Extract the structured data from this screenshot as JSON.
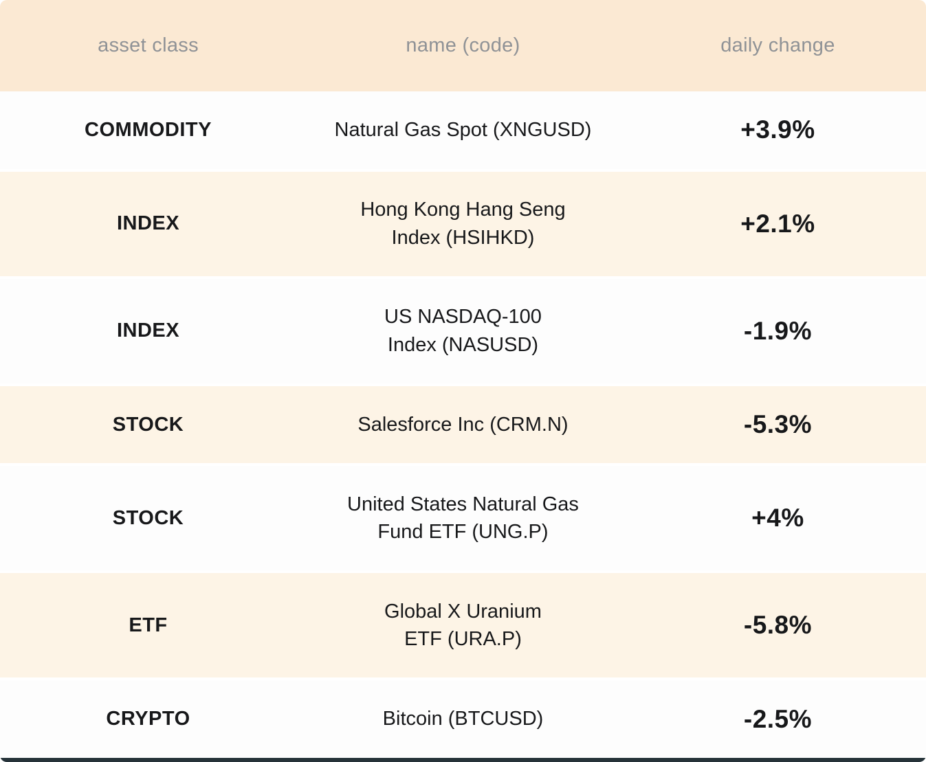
{
  "colors": {
    "header_bg": "#fbe9d3",
    "row_alt_bg": "#fdf4e6",
    "row_bg": "#fdfdfd",
    "header_text": "#8f9296",
    "text": "#17181a",
    "bottom_edge": "#263339"
  },
  "table": {
    "headers": [
      "asset class",
      "name (code)",
      "daily change"
    ],
    "rows": [
      {
        "asset_class": "COMMODITY",
        "name": "Natural Gas Spot (XNGUSD)",
        "change": "+3.9%",
        "alt": false
      },
      {
        "asset_class": "INDEX",
        "name": "Hong Kong Hang Seng\nIndex (HSIHKD)",
        "change": "+2.1%",
        "alt": true
      },
      {
        "asset_class": "INDEX",
        "name": "US NASDAQ-100\nIndex (NASUSD)",
        "change": "-1.9%",
        "alt": false
      },
      {
        "asset_class": "STOCK",
        "name": "Salesforce Inc (CRM.N)",
        "change": "-5.3%",
        "alt": true
      },
      {
        "asset_class": "STOCK",
        "name": "United States Natural Gas\nFund ETF (UNG.P)",
        "change": "+4%",
        "alt": false
      },
      {
        "asset_class": "ETF",
        "name": "Global X Uranium\nETF (URA.P)",
        "change": "-5.8%",
        "alt": true
      },
      {
        "asset_class": "CRYPTO",
        "name": "Bitcoin (BTCUSD)",
        "change": "-2.5%",
        "alt": false
      }
    ]
  },
  "chart_data": {
    "type": "table",
    "title": "",
    "columns": [
      "asset class",
      "name (code)",
      "daily change"
    ],
    "rows": [
      [
        "COMMODITY",
        "Natural Gas Spot (XNGUSD)",
        "+3.9%"
      ],
      [
        "INDEX",
        "Hong Kong Hang Seng Index (HSIHKD)",
        "+2.1%"
      ],
      [
        "INDEX",
        "US NASDAQ-100 Index (NASUSD)",
        "-1.9%"
      ],
      [
        "STOCK",
        "Salesforce Inc (CRM.N)",
        "-5.3%"
      ],
      [
        "STOCK",
        "United States Natural Gas Fund ETF (UNG.P)",
        "+4%"
      ],
      [
        "ETF",
        "Global X Uranium ETF (URA.P)",
        "-5.8%"
      ],
      [
        "CRYPTO",
        "Bitcoin (BTCUSD)",
        "-2.5%"
      ]
    ],
    "daily_change_values_pct": [
      3.9,
      2.1,
      -1.9,
      -5.3,
      4.0,
      -5.8,
      -2.5
    ]
  }
}
